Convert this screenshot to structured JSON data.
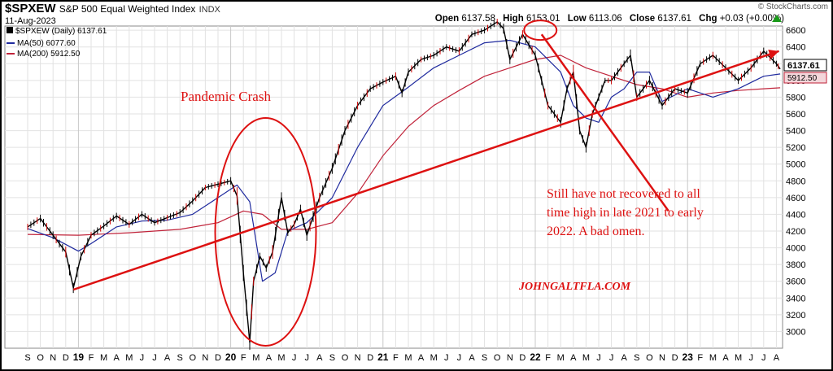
{
  "header": {
    "symbol": "$SPXEW",
    "description": "S&P 500 Equal Weighted Index",
    "exchange": "INDX",
    "date": "11-Aug-2023",
    "watermark": "© StockCharts.com",
    "stats": {
      "open_label": "Open",
      "open": "6137.58",
      "high_label": "High",
      "high": "6153.01",
      "low_label": "Low",
      "low": "6113.06",
      "close_label": "Close",
      "close": "6137.61",
      "chg_label": "Chg",
      "chg": "+0.03 (+0.00%)"
    }
  },
  "legend": {
    "price": "$SPXEW (Daily) 6137.61",
    "ma50": "MA(50) 6077.60",
    "ma200": "MA(200) 5912.50"
  },
  "price_tags": {
    "last": "6137.61",
    "ma200": "5912.50"
  },
  "annotations": {
    "crash_label": "Pandemic Crash",
    "note": [
      "Still have not recovered to all",
      "time high in late 2021 to early",
      "2022. A bad omen."
    ],
    "watermark": "JOHNGALTFLA.COM"
  },
  "colors": {
    "price": "#000000",
    "ma50": "#1f2a9e",
    "ma200": "#c0233a",
    "annotation": "#dd1111",
    "grid": "#e2e2e2",
    "down_bar": "#cc0000"
  },
  "chart_data": {
    "type": "line",
    "ylim": [
      2800,
      6650
    ],
    "y_ticks": [
      3000,
      3200,
      3400,
      3600,
      3800,
      4000,
      4200,
      4400,
      4600,
      4800,
      5000,
      5200,
      5400,
      5600,
      5800,
      6000,
      6200,
      6400,
      6600
    ],
    "x_ticks": [
      "S",
      "O",
      "N",
      "D",
      "19",
      "F",
      "M",
      "A",
      "M",
      "J",
      "J",
      "A",
      "S",
      "O",
      "N",
      "D",
      "20",
      "F",
      "M",
      "A",
      "M",
      "J",
      "J",
      "A",
      "S",
      "O",
      "N",
      "D",
      "21",
      "F",
      "M",
      "A",
      "M",
      "J",
      "J",
      "A",
      "S",
      "O",
      "N",
      "D",
      "22",
      "F",
      "M",
      "A",
      "M",
      "J",
      "J",
      "A",
      "S",
      "O",
      "N",
      "D",
      "23",
      "F",
      "M",
      "A",
      "M",
      "J",
      "J",
      "A"
    ],
    "x_range": [
      "2018-09",
      "2023-08"
    ],
    "series": [
      {
        "name": "$SPXEW (Daily)",
        "x": [
          0,
          1,
          2,
          3,
          3.6,
          4.2,
          5,
          6,
          7,
          8,
          9,
          10,
          11,
          12,
          13,
          14,
          15,
          16,
          16.5,
          17,
          17.5,
          17.8,
          18.3,
          18.8,
          19.3,
          20,
          20.5,
          21,
          21.5,
          22,
          23,
          24,
          25,
          26,
          27,
          28,
          29,
          29.5,
          30,
          31,
          32,
          33,
          34,
          35,
          36,
          37,
          37.5,
          38,
          39,
          40,
          40.5,
          41,
          42,
          42.5,
          43,
          43.5,
          44,
          44.5,
          45,
          45.5,
          46,
          47,
          47.5,
          48,
          49,
          50,
          51,
          52,
          53,
          54,
          55,
          56,
          57,
          58,
          59,
          59.3
        ],
        "values": [
          4250,
          4350,
          4150,
          3950,
          3520,
          3900,
          4150,
          4260,
          4380,
          4280,
          4400,
          4300,
          4360,
          4420,
          4560,
          4720,
          4760,
          4800,
          4620,
          3700,
          2870,
          3600,
          3900,
          3760,
          3950,
          4600,
          4180,
          4280,
          4460,
          4150,
          4600,
          4950,
          5400,
          5700,
          5900,
          5980,
          6050,
          5850,
          6100,
          6250,
          6300,
          6400,
          6350,
          6550,
          6600,
          6700,
          6620,
          6250,
          6550,
          6300,
          6000,
          5700,
          5500,
          5900,
          6100,
          5400,
          5200,
          5600,
          5800,
          6000,
          6000,
          6200,
          6300,
          5800,
          6000,
          5700,
          5900,
          5850,
          6200,
          6300,
          6150,
          6000,
          6150,
          6350,
          6200,
          6137
        ]
      },
      {
        "name": "MA(50)",
        "x": [
          0,
          2,
          4,
          5,
          7,
          9,
          11,
          13,
          15,
          16.5,
          17.5,
          18.5,
          19.5,
          20.5,
          22,
          24,
          26,
          28,
          30,
          32,
          34,
          36,
          38,
          40,
          42,
          43,
          44,
          45,
          46,
          47,
          48,
          49,
          50,
          52,
          54,
          56,
          58,
          59.3
        ],
        "values": [
          4230,
          4120,
          3960,
          4050,
          4250,
          4320,
          4330,
          4400,
          4600,
          4750,
          4550,
          3600,
          3700,
          4200,
          4300,
          4600,
          5200,
          5700,
          5920,
          6150,
          6300,
          6450,
          6480,
          6400,
          6100,
          5700,
          5550,
          5500,
          5800,
          5900,
          6100,
          6100,
          5750,
          5900,
          5800,
          5900,
          6050,
          6077
        ]
      },
      {
        "name": "MA(200)",
        "x": [
          0,
          4,
          8,
          12,
          15,
          17,
          18.5,
          20,
          22,
          24,
          26,
          28,
          30,
          32,
          34,
          36,
          38,
          40,
          42,
          44,
          46,
          48,
          50,
          52,
          54,
          56,
          58,
          59.3
        ],
        "values": [
          4160,
          4150,
          4180,
          4220,
          4300,
          4440,
          4400,
          4220,
          4220,
          4300,
          4650,
          5100,
          5450,
          5700,
          5880,
          6050,
          6150,
          6250,
          6300,
          6150,
          6050,
          5950,
          5900,
          5800,
          5850,
          5880,
          5900,
          5912
        ]
      }
    ],
    "annotation_lines": [
      {
        "from_x": 3.6,
        "from_y": 3500,
        "to_x": 59.2,
        "to_y": 6350
      },
      {
        "from_x": 40.5,
        "from_y": 6550,
        "to_x": 50.5,
        "to_y": 4440
      }
    ]
  }
}
